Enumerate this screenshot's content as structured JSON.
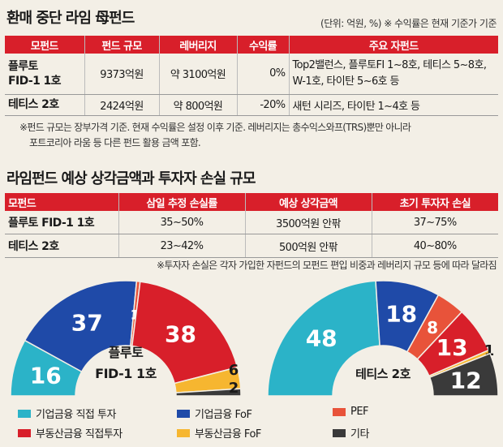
{
  "title1": "환매 중단 라임 母펀드",
  "unit_note": "(단위: 억원, %) ※ 수익률은 현재 기준가 기준",
  "table1": {
    "headers": [
      "모펀드",
      "펀드 규모",
      "레버리지",
      "수익률",
      "주요 자펀드"
    ],
    "rows": [
      {
        "fund_line1": "플루토",
        "fund_line2": "FID-1 1호",
        "size": "9373억원",
        "leverage": "약 3100억원",
        "ret": "0%",
        "sub_line1": "Top2밸런스, 플루토FI 1~8호, 테티스 5~8호,",
        "sub_line2": "W-1호, 타이탄 5~6호 등"
      },
      {
        "fund_line1": "테티스 2호",
        "fund_line2": "",
        "size": "2424억원",
        "leverage": "약 800억원",
        "ret": "-20%",
        "sub_line1": "새턴 시리즈, 타이탄 1~4호 등",
        "sub_line2": ""
      }
    ]
  },
  "footnote1_line1": "※펀드 규모는 장부가격 기준. 현재 수익률은 설정 이후 기준. 레버리지는 총수익스와프(TRS)뿐만 아니라",
  "footnote1_line2": "포트코리아 라움 등 다른 펀드 활용 금액 포함.",
  "title2": "라임펀드 예상 상각금액과 투자자 손실 규모",
  "table2": {
    "headers": [
      "모펀드",
      "삼일 추정 손실률",
      "예상 상각금액",
      "초기 투자자 손실"
    ],
    "rows": [
      {
        "fund": "플루토 FID-1 1호",
        "loss_rate": "35~50%",
        "writeoff": "3500억원 안팎",
        "investor_loss": "37~75%"
      },
      {
        "fund": "테티스 2호",
        "loss_rate": "23~42%",
        "writeoff": "500억원 안팎",
        "investor_loss": "40~80%"
      }
    ]
  },
  "footnote2": "※투자자 손실은 각자 가입한 자펀드의 모펀드 편입 비중과 레버리지 규모 등에 따라 달라짐",
  "colors": {
    "accent": "#d81f2a",
    "corp_direct": "#2bb3c8",
    "corp_fof": "#1f4aa8",
    "pef": "#e8533a",
    "re_direct": "#d81f2a",
    "re_fof": "#f6b630",
    "etc": "#3a3a3a"
  },
  "chart_data": [
    {
      "type": "pie",
      "label_line1": "플루토",
      "label_line2": "FID-1 1호",
      "slices": [
        {
          "category": "기업금융 직접 투자",
          "value": 16
        },
        {
          "category": "기업금융 FoF",
          "value": 37
        },
        {
          "category": "PEF",
          "value": 1
        },
        {
          "category": "부동산금융 직접투자",
          "value": 38
        },
        {
          "category": "부동산금융 FoF",
          "value": 6
        },
        {
          "category": "기타",
          "value": 2
        }
      ]
    },
    {
      "type": "pie",
      "label_line1": "테티스 2호",
      "label_line2": "",
      "slices": [
        {
          "category": "기업금융 직접 투자",
          "value": 48
        },
        {
          "category": "기업금융 FoF",
          "value": 18
        },
        {
          "category": "PEF",
          "value": 8
        },
        {
          "category": "부동산금융 직접투자",
          "value": 13
        },
        {
          "category": "부동산금융 FoF",
          "value": 1
        },
        {
          "category": "기타",
          "value": 12
        }
      ]
    }
  ],
  "legend": [
    {
      "label": "기업금융 직접 투자",
      "color": "#2bb3c8"
    },
    {
      "label": "기업금융 FoF",
      "color": "#1f4aa8"
    },
    {
      "label": "PEF",
      "color": "#e8533a"
    },
    {
      "label": "부동산금융 직접투자",
      "color": "#d81f2a"
    },
    {
      "label": "부동산금융 FoF",
      "color": "#f6b630"
    },
    {
      "label": "기타",
      "color": "#3a3a3a"
    }
  ]
}
